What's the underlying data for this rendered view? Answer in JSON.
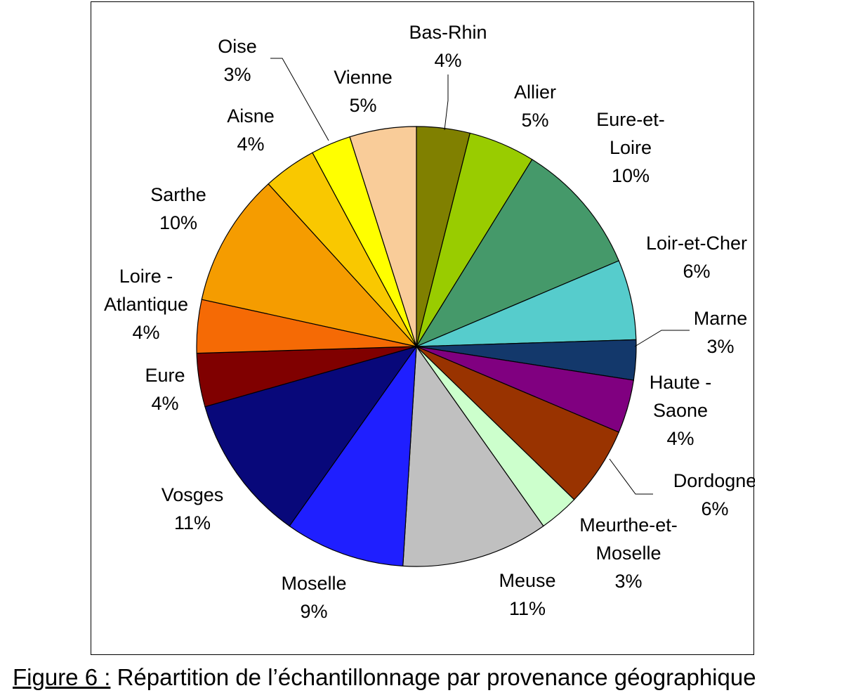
{
  "chart_data": {
    "type": "pie",
    "start_angle_deg": 0,
    "direction": "clockwise",
    "slices": [
      {
        "label_lines": [
          "Bas-Rhin",
          "4%"
        ],
        "value": 4,
        "color": "#808000"
      },
      {
        "label_lines": [
          "Allier",
          "5%"
        ],
        "value": 5,
        "color": "#99CC00"
      },
      {
        "label_lines": [
          "Eure-et-",
          "Loire",
          "10%"
        ],
        "value": 10,
        "color": "#45996A"
      },
      {
        "label_lines": [
          "Loir-et-Cher",
          "6%"
        ],
        "value": 6,
        "color": "#56CCCC"
      },
      {
        "label_lines": [
          "Marne",
          "3%"
        ],
        "value": 3,
        "color": "#13386B"
      },
      {
        "label_lines": [
          "Haute -",
          "Saone",
          "4%"
        ],
        "value": 4,
        "color": "#800080"
      },
      {
        "label_lines": [
          "Dordogne",
          "6%"
        ],
        "value": 6,
        "color": "#993300"
      },
      {
        "label_lines": [
          "Meurthe-et-",
          "Moselle",
          "3%"
        ],
        "value": 3,
        "color": "#CCFFCC"
      },
      {
        "label_lines": [
          "Meuse",
          "11%"
        ],
        "value": 11,
        "color": "#C0C0C0"
      },
      {
        "label_lines": [
          "Moselle",
          "9%"
        ],
        "value": 9,
        "color": "#1F1FFF"
      },
      {
        "label_lines": [
          "Vosges",
          "11%"
        ],
        "value": 11,
        "color": "#08087A"
      },
      {
        "label_lines": [
          "Eure",
          "4%"
        ],
        "value": 4,
        "color": "#800000"
      },
      {
        "label_lines": [
          "Loire -",
          "Atlantique",
          "4%"
        ],
        "value": 4,
        "color": "#F56A05"
      },
      {
        "label_lines": [
          "Sarthe",
          "10%"
        ],
        "value": 10,
        "color": "#F59C00"
      },
      {
        "label_lines": [
          "Aisne",
          "4%"
        ],
        "value": 4,
        "color": "#F9C800"
      },
      {
        "label_lines": [
          "Oise",
          "3%"
        ],
        "value": 3,
        "color": "#FFFF00"
      },
      {
        "label_lines": [
          "Vienne",
          "5%"
        ],
        "value": 5,
        "color": "#F9CC99"
      }
    ]
  },
  "caption": {
    "prefix": "Figure 6 :",
    "text": " Répartition de l’échantillonnage par provenance géographique"
  }
}
